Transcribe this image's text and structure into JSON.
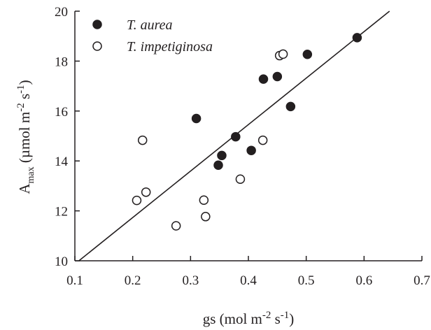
{
  "chart_data": {
    "type": "scatter",
    "xlabel": {
      "main": "gs (mol m",
      "sup1": "-2",
      "mid": " s",
      "sup2": "-1",
      "end": ")"
    },
    "ylabel": {
      "main": "A",
      "sub": "max",
      "rest": " (µmol m",
      "sup1": "-2",
      "mid": " s",
      "sup2": "-1",
      "end": ")"
    },
    "xlim": [
      0.1,
      0.7
    ],
    "ylim": [
      10,
      20
    ],
    "xticks": [
      0.1,
      0.2,
      0.3,
      0.4,
      0.5,
      0.6,
      0.7
    ],
    "yticks": [
      10,
      12,
      14,
      16,
      18,
      20
    ],
    "xtick_labels": [
      "0.1",
      "0.2",
      "0.3",
      "0.4",
      "0.5",
      "0.6",
      "0.7"
    ],
    "ytick_labels": [
      "10",
      "12",
      "14",
      "16",
      "18",
      "20"
    ],
    "grid": false,
    "legend_position": "top-left",
    "series": [
      {
        "name": "T. aurea",
        "marker": "filled-circle",
        "color": "#231f20",
        "points": [
          [
            0.31,
            15.7
          ],
          [
            0.348,
            13.83
          ],
          [
            0.354,
            14.22
          ],
          [
            0.378,
            14.97
          ],
          [
            0.405,
            14.42
          ],
          [
            0.426,
            17.28
          ],
          [
            0.45,
            17.38
          ],
          [
            0.473,
            16.18
          ],
          [
            0.502,
            18.27
          ],
          [
            0.588,
            18.94
          ]
        ]
      },
      {
        "name": "T. impetiginosa",
        "marker": "open-circle",
        "color": "#231f20",
        "points": [
          [
            0.207,
            12.42
          ],
          [
            0.217,
            14.83
          ],
          [
            0.223,
            12.75
          ],
          [
            0.275,
            11.4
          ],
          [
            0.323,
            12.43
          ],
          [
            0.326,
            11.77
          ],
          [
            0.386,
            13.27
          ],
          [
            0.425,
            14.83
          ],
          [
            0.454,
            18.22
          ],
          [
            0.46,
            18.28
          ]
        ]
      }
    ],
    "fit_line": {
      "x": [
        0.107,
        0.644
      ],
      "y": [
        10.0,
        20.0
      ]
    }
  }
}
